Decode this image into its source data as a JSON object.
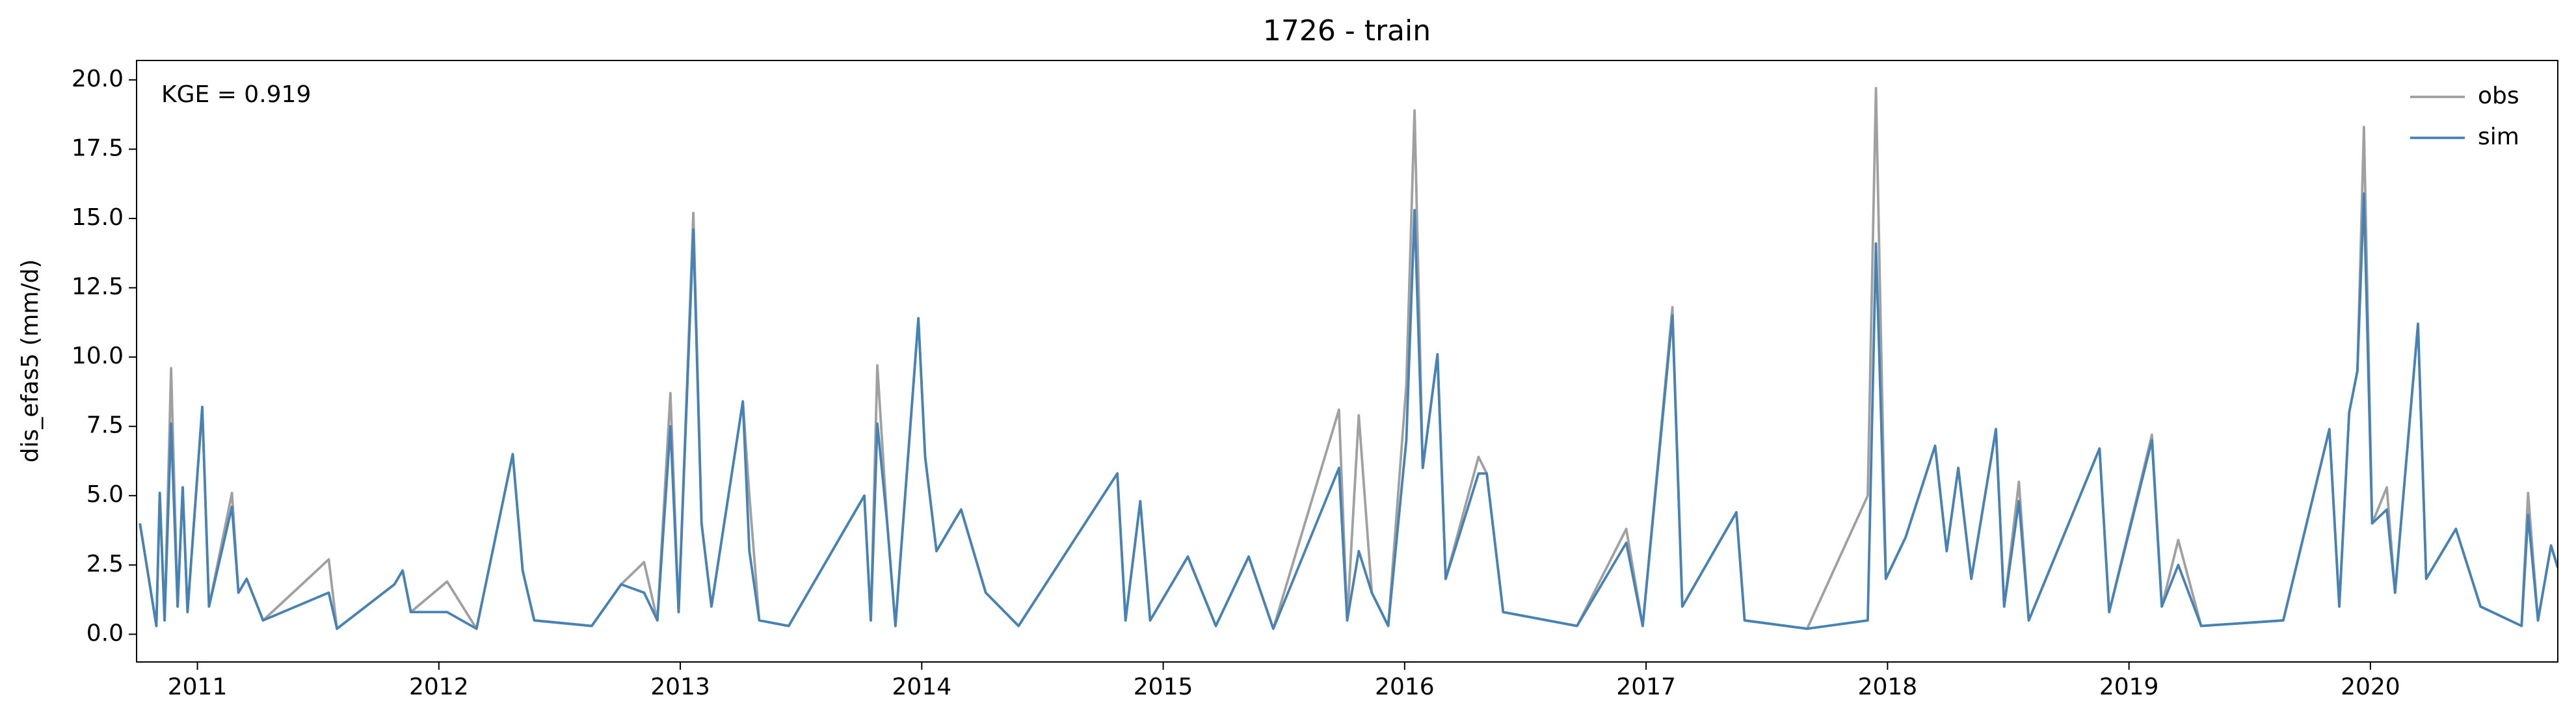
{
  "chart_data": {
    "type": "line",
    "title": "1726 - train",
    "ylabel": "dis_efas5 (mm/d)",
    "annotation": "KGE = 0.919",
    "legend": "upper right",
    "xlim": [
      2010.748,
      2020.776
    ],
    "xticks": [
      2011,
      2012,
      2013,
      2014,
      2015,
      2016,
      2017,
      2018,
      2019,
      2020
    ],
    "ylim": [
      -1.0,
      20.7
    ],
    "yticks": [
      {
        "value": 0,
        "label": "0.0"
      },
      2.5,
      {
        "value": 5,
        "label": "5.0"
      },
      7.5,
      {
        "value": 10,
        "label": "10.0"
      },
      12.5,
      {
        "value": 15,
        "label": "15.0"
      },
      17.5,
      {
        "value": 20,
        "label": "20.0"
      }
    ],
    "x": [
      2010.762,
      2010.83,
      2010.844,
      2010.864,
      2010.891,
      2010.918,
      2010.939,
      2010.959,
      2011.02,
      2011.048,
      2011.143,
      2011.17,
      2011.204,
      2011.272,
      2011.544,
      2011.578,
      2011.816,
      2011.85,
      2011.884,
      2012.034,
      2012.156,
      2012.306,
      2012.347,
      2012.395,
      2012.633,
      2012.755,
      2012.85,
      2012.905,
      2012.959,
      2012.993,
      2013.054,
      2013.088,
      2013.129,
      2013.259,
      2013.286,
      2013.327,
      2013.449,
      2013.762,
      2013.789,
      2013.816,
      2013.857,
      2013.891,
      2013.986,
      2014.014,
      2014.061,
      2014.163,
      2014.265,
      2014.401,
      2014.81,
      2014.844,
      2014.905,
      2014.946,
      2015.102,
      2015.218,
      2015.354,
      2015.456,
      2015.728,
      2015.762,
      2015.81,
      2015.864,
      2015.932,
      2016.007,
      2016.041,
      2016.075,
      2016.136,
      2016.17,
      2016.306,
      2016.34,
      2016.408,
      2016.714,
      2016.918,
      2016.986,
      2017.109,
      2017.15,
      2017.374,
      2017.408,
      2017.667,
      2017.918,
      2017.952,
      2017.993,
      2018.075,
      2018.197,
      2018.245,
      2018.293,
      2018.347,
      2018.449,
      2018.483,
      2018.544,
      2018.585,
      2018.878,
      2018.918,
      2019.095,
      2019.136,
      2019.204,
      2019.299,
      2019.639,
      2019.83,
      2019.871,
      2019.912,
      2019.946,
      2019.973,
      2020.007,
      2020.068,
      2020.102,
      2020.197,
      2020.231,
      2020.354,
      2020.456,
      2020.626,
      2020.653,
      2020.694,
      2020.748,
      2020.776
    ],
    "series": [
      {
        "name": "obs",
        "color": "#a0a0a0",
        "values": [
          4.0,
          0.3,
          5.1,
          0.5,
          9.6,
          1.0,
          5.3,
          0.8,
          8.2,
          1.0,
          5.1,
          1.5,
          2.0,
          0.5,
          2.7,
          0.2,
          1.8,
          2.3,
          0.8,
          1.9,
          0.2,
          6.5,
          2.3,
          0.5,
          0.3,
          1.8,
          2.6,
          0.5,
          8.7,
          0.8,
          15.2,
          4.0,
          1.0,
          8.4,
          5.0,
          0.5,
          0.3,
          5.0,
          0.5,
          9.7,
          4.0,
          0.3,
          11.4,
          6.4,
          3.0,
          4.5,
          1.5,
          0.3,
          5.8,
          0.5,
          4.8,
          0.5,
          2.8,
          0.3,
          2.8,
          0.2,
          8.1,
          0.5,
          7.9,
          1.5,
          0.3,
          9.0,
          18.9,
          6.0,
          10.1,
          2.0,
          6.4,
          5.8,
          0.8,
          0.3,
          3.8,
          0.3,
          11.8,
          1.0,
          4.4,
          0.5,
          0.2,
          5.0,
          19.7,
          2.0,
          3.5,
          6.8,
          3.0,
          6.0,
          2.0,
          7.4,
          1.0,
          5.5,
          0.5,
          6.7,
          0.8,
          7.2,
          1.0,
          3.4,
          0.3,
          0.5,
          7.4,
          1.0,
          8.0,
          9.5,
          18.3,
          4.0,
          5.3,
          1.5,
          11.2,
          2.0,
          3.8,
          1.0,
          0.3,
          5.1,
          0.5,
          3.2,
          2.4
        ]
      },
      {
        "name": "sim",
        "color": "#4682b4",
        "values": [
          4.0,
          0.3,
          5.1,
          0.5,
          7.6,
          1.0,
          5.3,
          0.8,
          8.2,
          1.0,
          4.6,
          1.5,
          2.0,
          0.5,
          1.5,
          0.2,
          1.8,
          2.3,
          0.8,
          0.8,
          0.2,
          6.5,
          2.3,
          0.5,
          0.3,
          1.8,
          1.5,
          0.5,
          7.5,
          0.8,
          14.6,
          4.0,
          1.0,
          8.4,
          3.0,
          0.5,
          0.3,
          5.0,
          0.5,
          7.6,
          4.0,
          0.3,
          11.4,
          6.4,
          3.0,
          4.5,
          1.5,
          0.3,
          5.8,
          0.5,
          4.8,
          0.5,
          2.8,
          0.3,
          2.8,
          0.2,
          6.0,
          0.5,
          3.0,
          1.5,
          0.3,
          7.0,
          15.3,
          6.0,
          10.1,
          2.0,
          5.8,
          5.8,
          0.8,
          0.3,
          3.3,
          0.3,
          11.5,
          1.0,
          4.4,
          0.5,
          0.2,
          0.5,
          14.1,
          2.0,
          3.5,
          6.8,
          3.0,
          6.0,
          2.0,
          7.4,
          1.0,
          4.8,
          0.5,
          6.7,
          0.8,
          7.0,
          1.0,
          2.5,
          0.3,
          0.5,
          7.4,
          1.0,
          8.0,
          9.5,
          15.9,
          4.0,
          4.5,
          1.5,
          11.2,
          2.0,
          3.8,
          1.0,
          0.3,
          4.3,
          0.5,
          3.2,
          2.4
        ]
      }
    ]
  }
}
